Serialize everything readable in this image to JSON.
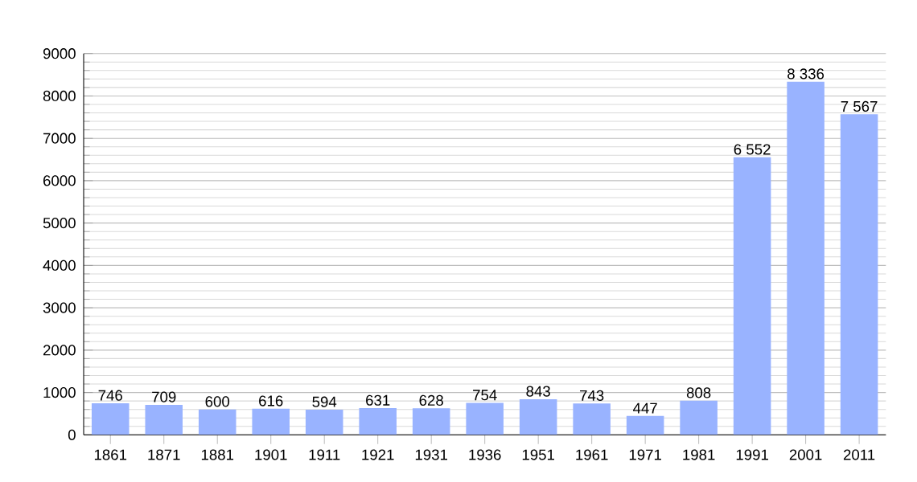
{
  "chart_data": {
    "type": "bar",
    "categories": [
      "1861",
      "1871",
      "1881",
      "1901",
      "1911",
      "1921",
      "1931",
      "1936",
      "1951",
      "1961",
      "1971",
      "1981",
      "1991",
      "2001",
      "2011"
    ],
    "values": [
      746,
      709,
      600,
      616,
      594,
      631,
      628,
      754,
      843,
      743,
      447,
      808,
      6552,
      8336,
      7567
    ],
    "value_labels": [
      "746",
      "709",
      "600",
      "616",
      "594",
      "631",
      "628",
      "754",
      "843",
      "743",
      "447",
      "808",
      "6 552",
      "8 336",
      "7 567"
    ],
    "color": "#99b3ff",
    "ylim": [
      0,
      9000
    ],
    "yticks": [
      0,
      1000,
      2000,
      3000,
      4000,
      5000,
      6000,
      7000,
      8000,
      9000
    ],
    "grid": "y"
  }
}
